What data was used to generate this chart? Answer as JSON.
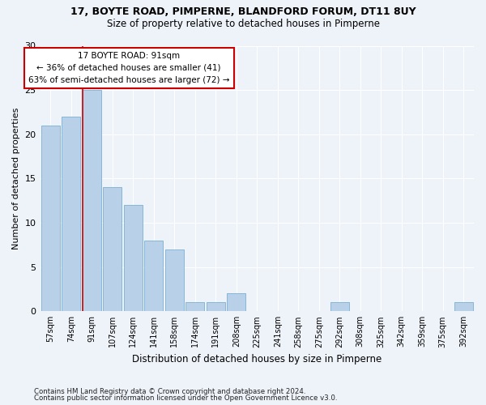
{
  "title1": "17, BOYTE ROAD, PIMPERNE, BLANDFORD FORUM, DT11 8UY",
  "title2": "Size of property relative to detached houses in Pimperne",
  "xlabel": "Distribution of detached houses by size in Pimperne",
  "ylabel": "Number of detached properties",
  "categories": [
    "57sqm",
    "74sqm",
    "91sqm",
    "107sqm",
    "124sqm",
    "141sqm",
    "158sqm",
    "174sqm",
    "191sqm",
    "208sqm",
    "225sqm",
    "241sqm",
    "258sqm",
    "275sqm",
    "292sqm",
    "308sqm",
    "325sqm",
    "342sqm",
    "359sqm",
    "375sqm",
    "392sqm"
  ],
  "values": [
    21,
    22,
    25,
    14,
    12,
    8,
    7,
    1,
    1,
    2,
    0,
    0,
    0,
    0,
    1,
    0,
    0,
    0,
    0,
    0,
    1
  ],
  "bar_color": "#b8d0e8",
  "bar_edge_color": "#7bafd4",
  "highlight_index": 2,
  "highlight_line_color": "#cc0000",
  "annotation_line1": "17 BOYTE ROAD: 91sqm",
  "annotation_line2": "← 36% of detached houses are smaller (41)",
  "annotation_line3": "63% of semi-detached houses are larger (72) →",
  "annotation_box_color": "#ffffff",
  "annotation_box_edge_color": "#cc0000",
  "ylim": [
    0,
    30
  ],
  "yticks": [
    0,
    5,
    10,
    15,
    20,
    25,
    30
  ],
  "footnote1": "Contains HM Land Registry data © Crown copyright and database right 2024.",
  "footnote2": "Contains public sector information licensed under the Open Government Licence v3.0.",
  "background_color": "#eef2f9",
  "grid_color": "#ffffff"
}
